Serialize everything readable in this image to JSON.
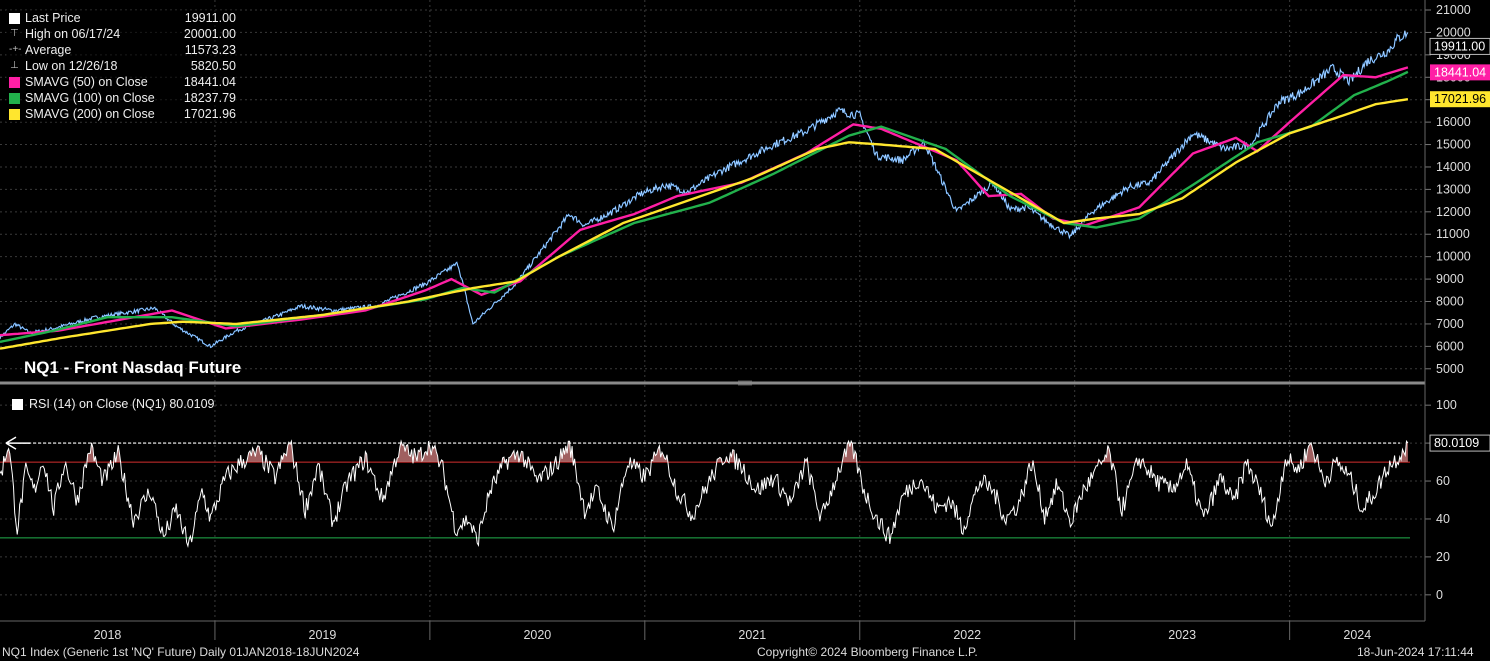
{
  "colors": {
    "price": "#5aa9ff",
    "sma50": "#ff1fa5",
    "sma100": "#22b14c",
    "sma200": "#ffe62e",
    "rsi": "#ffffff",
    "rsi_upper": "#d62828",
    "rsi_lower": "#22b14c",
    "grid": "#3a3a3a",
    "background": "#000000"
  },
  "legend": {
    "items": [
      {
        "icon": "square",
        "name": "Last Price",
        "value": "19911.00"
      },
      {
        "icon": "high",
        "name": "High on 06/17/24",
        "value": "20001.00"
      },
      {
        "icon": "avg",
        "name": "Average",
        "value": "11573.23"
      },
      {
        "icon": "low",
        "name": "Low on 12/26/18",
        "value": "5820.50"
      },
      {
        "icon": "square",
        "name": "SMAVG (50)  on Close",
        "value": "18441.04"
      },
      {
        "icon": "square",
        "name": "SMAVG (100)  on Close",
        "value": "18237.79"
      },
      {
        "icon": "square",
        "name": "SMAVG (200)  on Close",
        "value": "17021.96"
      }
    ]
  },
  "chart_title": "NQ1 - Front Nasdaq Future",
  "rsi_legend": "RSI (14)  on Close (NQ1) 80.0109",
  "footer": {
    "left": "NQ1 Index (Generic 1st 'NQ' Future)  Daily 01JAN2018-18JUN2024",
    "center": "Copyright© 2024 Bloomberg Finance L.P.",
    "right": "18-Jun-2024 17:11:44"
  },
  "chart_data": [
    {
      "type": "line",
      "title": "NQ1 - Front Nasdaq Future",
      "ylim": [
        4500,
        21000
      ],
      "yticks": [
        5000,
        6000,
        7000,
        8000,
        9000,
        10000,
        11000,
        12000,
        13000,
        14000,
        15000,
        16000,
        17000,
        18000,
        19000,
        20000,
        21000
      ],
      "xlim": [
        2018.0,
        2024.56
      ],
      "years": [
        "2018",
        "2019",
        "2020",
        "2021",
        "2022",
        "2023",
        "2024"
      ],
      "last_value_labels": [
        {
          "series": "Last Price",
          "value": "19911.00"
        },
        {
          "series": "SMAVG (50)",
          "value": "18441.04"
        },
        {
          "series": "SMAVG (200)",
          "value": "17021.96"
        }
      ],
      "series": [
        {
          "name": "Last Price",
          "color": "#5aa9ff",
          "x": [
            2018.0,
            2018.07,
            2018.14,
            2018.25,
            2018.45,
            2018.72,
            2018.82,
            2018.98,
            2019.1,
            2019.3,
            2019.4,
            2019.55,
            2019.75,
            2019.98,
            2020.13,
            2020.2,
            2020.4,
            2020.65,
            2020.72,
            2020.85,
            2020.98,
            2021.1,
            2021.2,
            2021.35,
            2021.6,
            2021.75,
            2021.9,
            2022.0,
            2022.08,
            2022.2,
            2022.3,
            2022.45,
            2022.62,
            2022.7,
            2022.78,
            2022.88,
            2022.98,
            2023.08,
            2023.25,
            2023.35,
            2023.55,
            2023.7,
            2023.82,
            2023.95,
            2024.05,
            2024.2,
            2024.28,
            2024.36,
            2024.46,
            2024.5,
            2024.55
          ],
          "values": [
            6400,
            7000,
            6600,
            6800,
            7300,
            7700,
            6900,
            6000,
            6700,
            7400,
            7800,
            7600,
            7800,
            8800,
            9700,
            7000,
            8800,
            11900,
            11400,
            12000,
            12800,
            13200,
            12900,
            13800,
            15000,
            15600,
            16500,
            16300,
            14500,
            14300,
            15100,
            12000,
            13300,
            12100,
            12200,
            11500,
            10900,
            12000,
            13100,
            13300,
            15500,
            14800,
            15000,
            16900,
            17300,
            18400,
            17800,
            18700,
            19200,
            19700,
            20001
          ]
        },
        {
          "name": "SMAVG (50)",
          "color": "#ff1fa5",
          "x": [
            2018.0,
            2018.27,
            2018.8,
            2019.05,
            2019.4,
            2019.7,
            2019.98,
            2020.1,
            2020.24,
            2020.42,
            2020.7,
            2020.95,
            2021.15,
            2021.45,
            2021.75,
            2021.97,
            2022.1,
            2022.45,
            2022.6,
            2022.75,
            2022.9,
            2023.05,
            2023.3,
            2023.55,
            2023.75,
            2023.85,
            2024.0,
            2024.25,
            2024.4,
            2024.55
          ],
          "values": [
            6500,
            6700,
            7600,
            6800,
            7200,
            7600,
            8500,
            9000,
            8300,
            8900,
            11200,
            11900,
            12700,
            13300,
            14600,
            15900,
            15700,
            14300,
            12700,
            12800,
            11700,
            11400,
            12200,
            14600,
            15300,
            14700,
            16000,
            18100,
            18000,
            18441
          ]
        },
        {
          "name": "SMAVG (100)",
          "color": "#22b14c",
          "x": [
            2018.0,
            2018.25,
            2018.5,
            2018.8,
            2019.1,
            2019.5,
            2019.98,
            2020.15,
            2020.3,
            2020.6,
            2020.95,
            2021.3,
            2021.6,
            2021.95,
            2022.1,
            2022.4,
            2022.7,
            2022.95,
            2023.1,
            2023.3,
            2023.55,
            2023.85,
            2024.1,
            2024.3,
            2024.45,
            2024.55
          ],
          "values": [
            6200,
            6700,
            7300,
            7300,
            6900,
            7400,
            8100,
            8600,
            8400,
            10000,
            11500,
            12400,
            13700,
            15400,
            15800,
            14800,
            12700,
            11500,
            11300,
            11700,
            13200,
            15100,
            15800,
            17200,
            17800,
            18238
          ]
        },
        {
          "name": "SMAVG (200)",
          "color": "#ffe62e",
          "x": [
            2018.0,
            2018.3,
            2018.7,
            2018.85,
            2019.1,
            2019.5,
            2019.9,
            2020.2,
            2020.4,
            2020.6,
            2020.9,
            2021.2,
            2021.5,
            2021.8,
            2021.95,
            2022.1,
            2022.35,
            2022.55,
            2022.75,
            2022.95,
            2023.1,
            2023.3,
            2023.5,
            2023.75,
            2024.0,
            2024.25,
            2024.4,
            2024.55
          ],
          "values": [
            5900,
            6400,
            7000,
            7100,
            7000,
            7400,
            8000,
            8600,
            8900,
            10000,
            11500,
            12500,
            13500,
            14800,
            15100,
            15000,
            14800,
            13700,
            12600,
            11500,
            11700,
            11900,
            12600,
            14200,
            15500,
            16300,
            16800,
            17022
          ]
        }
      ]
    },
    {
      "type": "line",
      "title": "RSI (14)  on Close (NQ1) 80.0109",
      "ylim": [
        -8,
        108
      ],
      "yticks": [
        0,
        20,
        40,
        60,
        80,
        100
      ],
      "upper_band": 70,
      "lower_band": 30,
      "last_value": "80.0109",
      "series": [
        {
          "name": "RSI (14)",
          "color": "#ffffff",
          "x": [
            2018.0,
            2018.04,
            2018.08,
            2018.12,
            2018.16,
            2018.2,
            2018.25,
            2018.3,
            2018.36,
            2018.42,
            2018.48,
            2018.55,
            2018.62,
            2018.7,
            2018.76,
            2018.82,
            2018.88,
            2018.94,
            2018.98,
            2019.05,
            2019.12,
            2019.2,
            2019.28,
            2019.35,
            2019.42,
            2019.48,
            2019.55,
            2019.62,
            2019.7,
            2019.78,
            2019.86,
            2019.94,
            2020.0,
            2020.06,
            2020.12,
            2020.18,
            2020.22,
            2020.28,
            2020.35,
            2020.42,
            2020.5,
            2020.58,
            2020.65,
            2020.72,
            2020.78,
            2020.85,
            2020.92,
            2021.0,
            2021.08,
            2021.15,
            2021.22,
            2021.3,
            2021.38,
            2021.45,
            2021.52,
            2021.6,
            2021.68,
            2021.75,
            2021.82,
            2021.9,
            2021.96,
            2022.02,
            2022.08,
            2022.14,
            2022.2,
            2022.28,
            2022.36,
            2022.42,
            2022.48,
            2022.56,
            2022.62,
            2022.68,
            2022.74,
            2022.8,
            2022.86,
            2022.92,
            2022.98,
            2023.04,
            2023.1,
            2023.16,
            2023.22,
            2023.3,
            2023.38,
            2023.45,
            2023.52,
            2023.6,
            2023.68,
            2023.74,
            2023.8,
            2023.86,
            2023.92,
            2023.98,
            2024.04,
            2024.1,
            2024.16,
            2024.22,
            2024.28,
            2024.34,
            2024.4,
            2024.46,
            2024.5,
            2024.55
          ],
          "values": [
            62,
            80,
            35,
            65,
            55,
            72,
            45,
            70,
            50,
            78,
            60,
            74,
            40,
            55,
            30,
            45,
            25,
            55,
            40,
            62,
            70,
            75,
            62,
            80,
            45,
            68,
            38,
            60,
            72,
            50,
            78,
            72,
            80,
            66,
            35,
            40,
            28,
            55,
            70,
            75,
            60,
            68,
            80,
            45,
            55,
            35,
            70,
            62,
            78,
            55,
            42,
            60,
            75,
            68,
            55,
            62,
            48,
            70,
            40,
            65,
            80,
            55,
            40,
            30,
            52,
            62,
            45,
            50,
            35,
            60,
            55,
            40,
            48,
            70,
            42,
            58,
            38,
            55,
            65,
            75,
            45,
            72,
            60,
            55,
            68,
            40,
            62,
            48,
            70,
            55,
            35,
            72,
            66,
            80,
            60,
            70,
            62,
            45,
            55,
            68,
            72,
            80
          ]
        }
      ]
    }
  ]
}
